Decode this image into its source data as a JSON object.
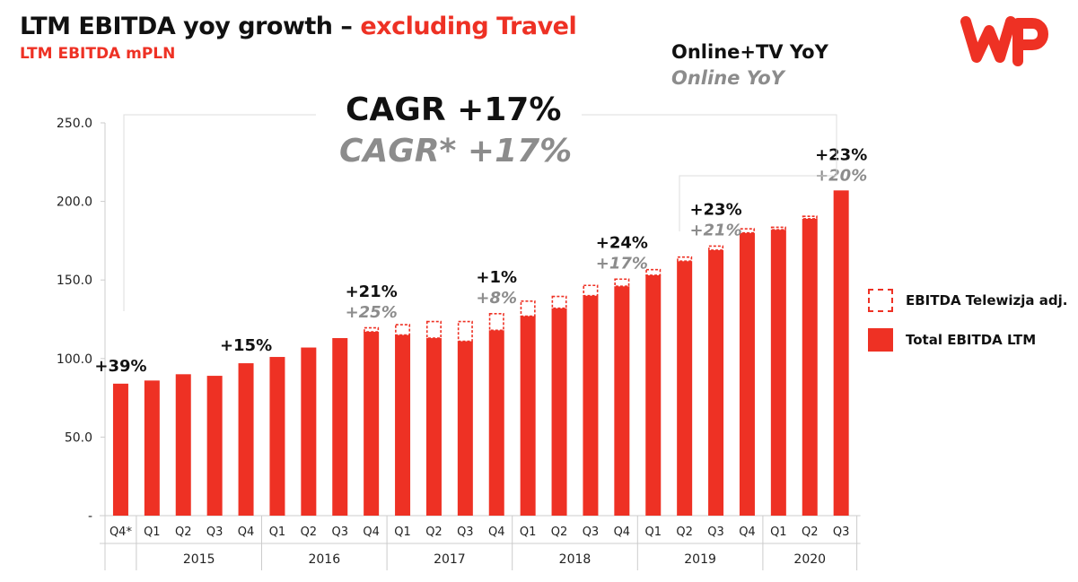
{
  "header": {
    "title_main": "LTM EBITDA yoy growth – ",
    "title_accent": "excluding Travel",
    "subtitle": "LTM EBITDA mPLN"
  },
  "brand": {
    "logo_text": "WP",
    "color": "#ee3124"
  },
  "yoy_key": {
    "online_tv": "Online+TV YoY",
    "online": "Online YoY"
  },
  "cagr": {
    "main": "CAGR +17%",
    "sub": "CAGR* +17%"
  },
  "legend": {
    "adj_label": "EBITDA Telewizja adj.",
    "total_label": "Total EBITDA LTM"
  },
  "colors": {
    "bar": "#ee3124",
    "text_dark": "#111111",
    "text_grey": "#8c8c8c",
    "axis": "#cccccc"
  },
  "chart_data": {
    "type": "bar",
    "stacked": true,
    "title": "LTM EBITDA yoy growth – excluding Travel",
    "ylabel": "",
    "ylim": [
      0,
      250
    ],
    "yticks": [
      {
        "value": 0,
        "label": "-"
      },
      {
        "value": 50,
        "label": "50.0"
      },
      {
        "value": 100,
        "label": "100.0"
      },
      {
        "value": 150,
        "label": "150.0"
      },
      {
        "value": 200,
        "label": "200.0"
      },
      {
        "value": 250,
        "label": "250.0"
      }
    ],
    "categories": [
      "Q4*",
      "Q1",
      "Q2",
      "Q3",
      "Q4",
      "Q1",
      "Q2",
      "Q3",
      "Q4",
      "Q1",
      "Q2",
      "Q3",
      "Q4",
      "Q1",
      "Q2",
      "Q3",
      "Q4",
      "Q1",
      "Q2",
      "Q3",
      "Q4",
      "Q1",
      "Q2",
      "Q3"
    ],
    "groups": [
      {
        "label": "2015",
        "start": 1,
        "count": 4
      },
      {
        "label": "2016",
        "start": 5,
        "count": 4
      },
      {
        "label": "2017",
        "start": 9,
        "count": 4
      },
      {
        "label": "2018",
        "start": 13,
        "count": 4
      },
      {
        "label": "2019",
        "start": 17,
        "count": 4
      },
      {
        "label": "2020",
        "start": 21,
        "count": 3
      }
    ],
    "series": [
      {
        "name": "Total EBITDA LTM",
        "values": [
          84,
          86,
          90,
          89,
          97,
          101,
          107,
          113,
          117,
          115,
          113,
          111,
          118,
          127,
          132,
          140,
          146,
          153,
          162,
          169,
          180,
          182,
          189,
          207
        ]
      },
      {
        "name": "EBITDA Telewizja adj.",
        "values": [
          0,
          0,
          0,
          0,
          0,
          0,
          0,
          0,
          3,
          7,
          11,
          13,
          11,
          10,
          8,
          7,
          5,
          4,
          3,
          3,
          3,
          2,
          2,
          0
        ]
      }
    ],
    "annotations": [
      {
        "index": 0,
        "main": "+39%",
        "sub": ""
      },
      {
        "index": 4,
        "main": "+15%",
        "sub": ""
      },
      {
        "index": 8,
        "main": "+21%",
        "sub": "+25%"
      },
      {
        "index": 12,
        "main": "+1%",
        "sub": "+8%"
      },
      {
        "index": 16,
        "main": "+24%",
        "sub": "+17%"
      },
      {
        "index": 19,
        "main": "+23%",
        "sub": "+21%"
      },
      {
        "index": 23,
        "main": "+23%",
        "sub": "+20%"
      }
    ]
  }
}
